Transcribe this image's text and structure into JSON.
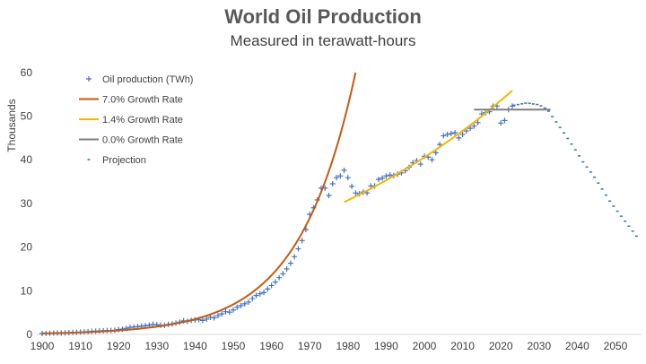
{
  "chart_data": {
    "type": "line",
    "title": "World Oil Production",
    "subtitle": "Measured in terawatt-hours",
    "ylabel": "Thousands",
    "xlabel": "",
    "xlim": [
      1900,
      2056
    ],
    "ylim": [
      0,
      60
    ],
    "xticks": [
      "1900",
      "1910",
      "1920",
      "1930",
      "1940",
      "1950",
      "1960",
      "1970",
      "1980",
      "1990",
      "2000",
      "2010",
      "2020",
      "2030",
      "2040",
      "2050"
    ],
    "yticks": [
      "0",
      "10",
      "20",
      "30",
      "40",
      "50",
      "60"
    ],
    "grid": false,
    "legend_position": "top-left",
    "series": [
      {
        "name": "Oil production (TWh)",
        "style": "plus-markers",
        "color": "#4472C4",
        "x_start": 1900,
        "values": [
          0.2,
          0.22,
          0.25,
          0.28,
          0.3,
          0.32,
          0.35,
          0.4,
          0.45,
          0.5,
          0.55,
          0.6,
          0.65,
          0.7,
          0.75,
          0.8,
          0.85,
          0.9,
          0.9,
          0.95,
          1.1,
          1.2,
          1.4,
          1.6,
          1.7,
          1.8,
          1.9,
          2.0,
          2.1,
          2.3,
          2.2,
          2.1,
          2.1,
          2.3,
          2.4,
          2.6,
          2.8,
          3.1,
          3.0,
          3.2,
          3.3,
          3.4,
          3.2,
          3.5,
          3.9,
          3.8,
          4.3,
          4.7,
          5.2,
          5.1,
          5.6,
          6.2,
          6.6,
          7.0,
          7.4,
          8.2,
          8.9,
          9.3,
          9.6,
          10.4,
          11.2,
          12.0,
          13.0,
          13.9,
          15.0,
          16.3,
          17.8,
          19.6,
          21.5,
          24.0,
          27.5,
          29.0,
          30.8,
          33.5,
          33.5,
          31.8,
          34.5,
          35.9,
          36.3,
          37.6,
          35.9,
          33.9,
          32.4,
          32.2,
          32.6,
          32.4,
          34.0,
          34.0,
          35.5,
          35.8,
          36.3,
          36.5,
          36.4,
          36.7,
          37.0,
          37.5,
          38.3,
          39.3,
          39.8,
          39.0,
          40.8,
          40.6,
          40.0,
          41.6,
          43.5,
          45.5,
          45.8,
          46.0,
          46.2,
          45.0,
          45.8,
          46.6,
          47.2,
          47.7,
          48.5,
          50.5,
          50.8,
          51.0,
          52.3,
          52.3,
          48.4,
          49.0,
          51.5,
          52.3
        ]
      },
      {
        "name": "7.0% Growth Rate",
        "style": "line",
        "color": "#C55A11",
        "x": [
          1900,
          1910,
          1920,
          1925,
          1930,
          1935,
          1940,
          1945,
          1950,
          1955,
          1960,
          1965,
          1970,
          1975,
          1980,
          1982
        ],
        "values": [
          0.23,
          0.46,
          0.9,
          1.27,
          1.78,
          2.5,
          3.5,
          4.9,
          6.88,
          9.65,
          13.5,
          19.0,
          26.6,
          37.4,
          52.4,
          60
        ]
      },
      {
        "name": "1.4% Growth Rate",
        "style": "line",
        "color": "#F2B600",
        "x": [
          1979,
          1990,
          2000,
          2010,
          2020,
          2023
        ],
        "values": [
          30.3,
          35.2,
          40.5,
          46.5,
          53.5,
          55.8
        ]
      },
      {
        "name": "0.0% Growth Rate",
        "style": "line",
        "color": "#7F7F7F",
        "x": [
          2013,
          2033
        ],
        "values": [
          51.5,
          51.5
        ]
      },
      {
        "name": "Projection",
        "style": "dash-markers",
        "color": "#2E75B6",
        "x": [
          2023.5,
          2026.8,
          2030,
          2032.2,
          2035.2,
          2039.2,
          2041.5,
          2044.6,
          2048.6,
          2052,
          2055.5
        ],
        "values": [
          52.5,
          53.0,
          52.6,
          51.5,
          47.8,
          42.7,
          39.5,
          35.9,
          30.4,
          26.5,
          22.5
        ]
      }
    ]
  }
}
